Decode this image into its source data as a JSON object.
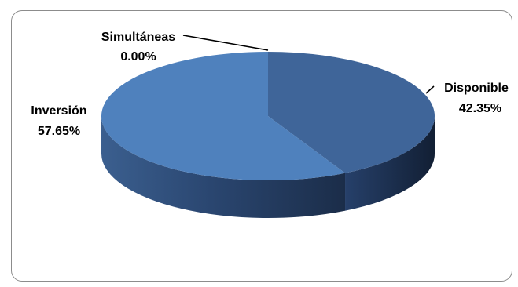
{
  "chart_data": {
    "type": "pie",
    "style": "3d",
    "title": "",
    "slices": [
      {
        "name": "Disponible",
        "value": 42.35,
        "label_value": "42.35%",
        "color": "#3f6599"
      },
      {
        "name": "Inversión",
        "value": 57.65,
        "label_value": "57.65%",
        "color": "#4f81bd"
      },
      {
        "name": "Simultáneas",
        "value": 0.0,
        "label_value": "0.00%",
        "color": "#4a78b0"
      }
    ],
    "legend": "none",
    "data_labels": "category name and percentage"
  }
}
